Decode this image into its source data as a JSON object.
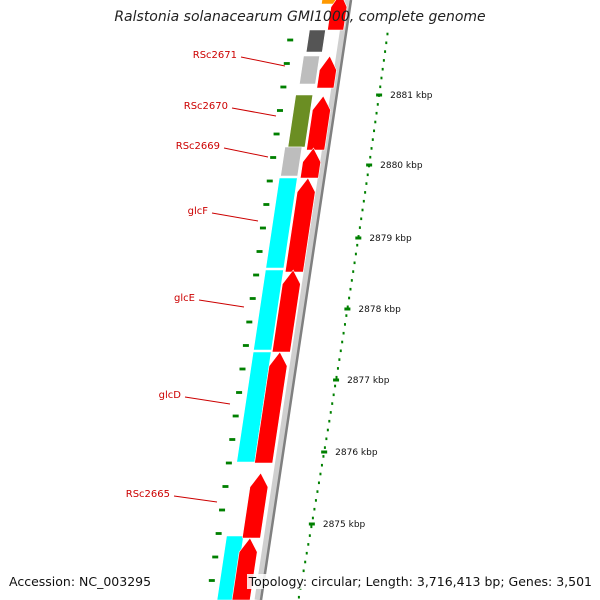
{
  "title": "Ralstonia solanacearum GMI1000, complete genome",
  "footer": {
    "accession": "Accession: NC_003295",
    "stats": "Topology: circular; Length: 3,716,413 bp; Genes: 3,501"
  },
  "colors": {
    "cds": "#ff0000",
    "glc_operon": "#00ffff",
    "rsc2670": "#6b8e23",
    "grey_gene": "#bdbdbd",
    "dark_gene": "#555555",
    "orange_gene": "#ff9900",
    "tick": "#008000",
    "label": "#cc0000",
    "backbone": "#888888"
  },
  "icons": [
    "genome-backbone",
    "cds-arrow",
    "gene-block"
  ],
  "gene_labels": [
    {
      "name": "RSc2671"
    },
    {
      "name": "RSc2670"
    },
    {
      "name": "RSc2669"
    },
    {
      "name": "glcF"
    },
    {
      "name": "glcE"
    },
    {
      "name": "glcD"
    },
    {
      "name": "RSc2665"
    }
  ],
  "ruler": [
    {
      "label": "2881 kbp"
    },
    {
      "label": "2880 kbp"
    },
    {
      "label": "2879 kbp"
    },
    {
      "label": "2878 kbp"
    },
    {
      "label": "2877 kbp"
    },
    {
      "label": "2876 kbp"
    },
    {
      "label": "2875 kbp"
    }
  ]
}
